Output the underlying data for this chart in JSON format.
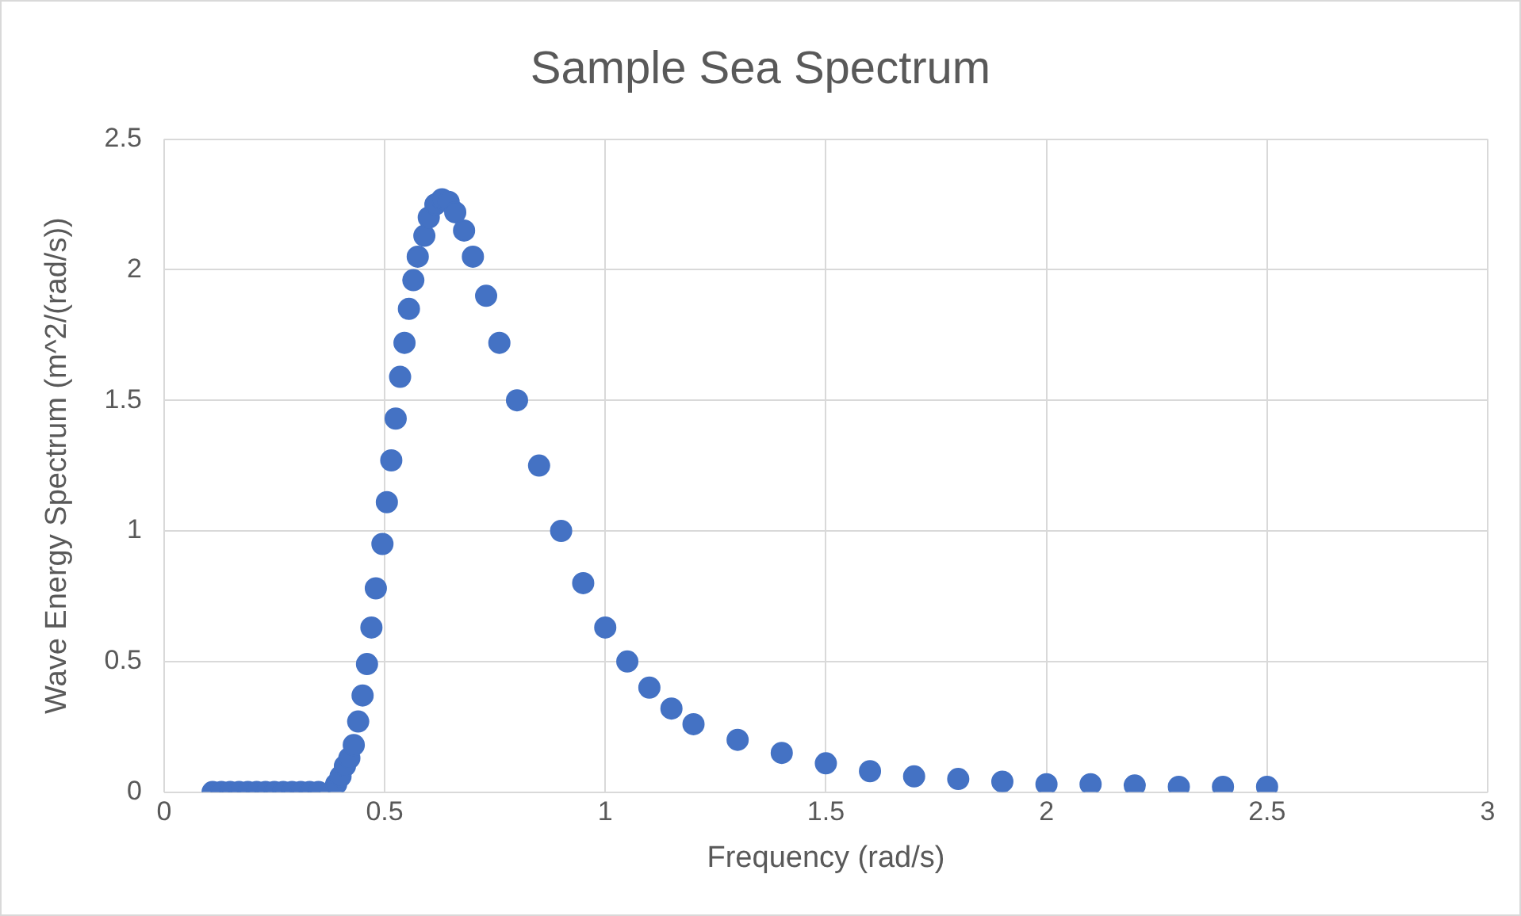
{
  "chart_data": {
    "type": "scatter",
    "title": "Sample Sea Spectrum",
    "xlabel": "Frequency (rad/s)",
    "ylabel": "Wave Energy Spectrum (m^2/(rad/s))",
    "x": [
      0.11,
      0.13,
      0.15,
      0.17,
      0.19,
      0.21,
      0.23,
      0.25,
      0.27,
      0.29,
      0.31,
      0.33,
      0.35,
      0.39,
      0.4,
      0.41,
      0.42,
      0.43,
      0.44,
      0.45,
      0.46,
      0.47,
      0.48,
      0.495,
      0.505,
      0.515,
      0.525,
      0.535,
      0.545,
      0.555,
      0.565,
      0.575,
      0.59,
      0.6,
      0.615,
      0.63,
      0.645,
      0.66,
      0.68,
      0.7,
      0.73,
      0.76,
      0.8,
      0.85,
      0.9,
      0.95,
      1.0,
      1.05,
      1.1,
      1.15,
      1.2,
      1.3,
      1.4,
      1.5,
      1.6,
      1.7,
      1.8,
      1.9,
      2.0,
      2.1,
      2.2,
      2.3,
      2.4,
      2.5
    ],
    "series": [
      {
        "color": "#4472c4",
        "values": [
          0,
          0,
          0,
          0,
          0,
          0,
          0,
          0,
          0,
          0,
          0,
          0,
          0,
          0.03,
          0.06,
          0.1,
          0.13,
          0.18,
          0.27,
          0.37,
          0.49,
          0.63,
          0.78,
          0.95,
          1.11,
          1.27,
          1.43,
          1.59,
          1.72,
          1.85,
          1.96,
          2.05,
          2.13,
          2.2,
          2.25,
          2.27,
          2.26,
          2.22,
          2.15,
          2.05,
          1.9,
          1.72,
          1.5,
          1.25,
          1.0,
          0.8,
          0.63,
          0.5,
          0.4,
          0.32,
          0.26,
          0.2,
          0.15,
          0.11,
          0.08,
          0.06,
          0.05,
          0.04,
          0.03,
          0.03,
          0.025,
          0.02,
          0.02,
          0.02
        ]
      }
    ],
    "xlim": [
      0,
      3
    ],
    "xticks": [
      0,
      0.5,
      1,
      1.5,
      2,
      2.5,
      3
    ],
    "ylim": [
      0,
      2.5
    ],
    "yticks": [
      0,
      0.5,
      1,
      1.5,
      2,
      2.5
    ],
    "grid": true,
    "marker": "circle"
  }
}
